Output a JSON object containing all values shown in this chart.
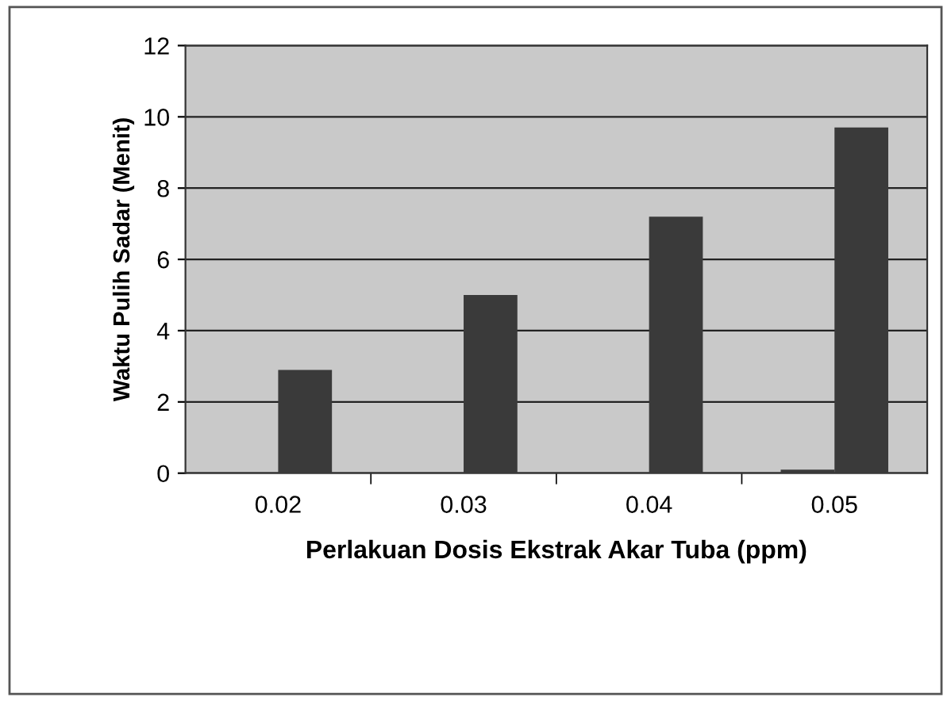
{
  "chart_data": {
    "type": "bar",
    "xlabel": "Perlakuan Dosis Ekstrak Akar Tuba (ppm)",
    "ylabel": "Waktu Pulih Sadar (Menit)",
    "categories": [
      "0.02",
      "0.03",
      "0.04",
      "0.05"
    ],
    "series": [
      {
        "color": "#3a3a3a",
        "values": [
          0,
          0,
          0,
          0.1
        ]
      },
      {
        "color": "#3a3a3a",
        "values": [
          2.9,
          5.0,
          7.2,
          9.7
        ]
      }
    ],
    "ylim": [
      0,
      12
    ],
    "yticks": [
      0,
      2,
      4,
      6,
      8,
      10,
      12
    ],
    "grid": "y"
  }
}
